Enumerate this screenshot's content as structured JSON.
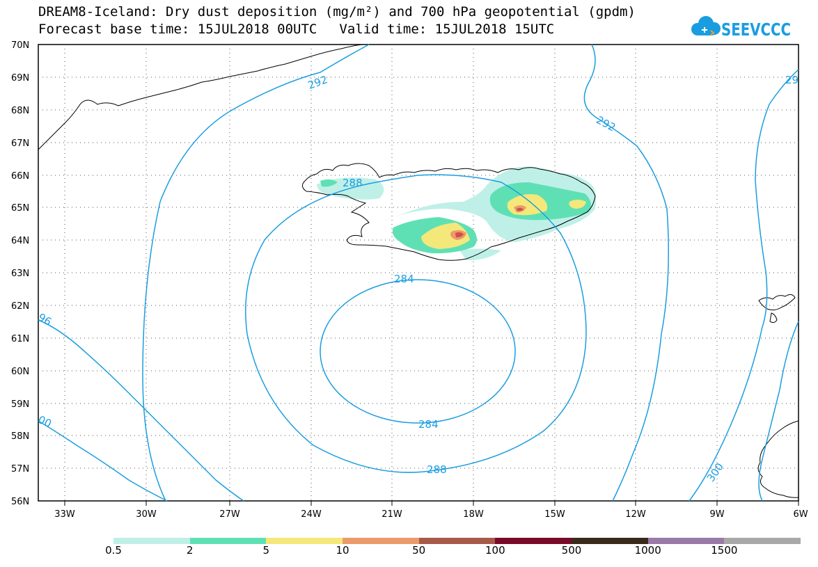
{
  "title": {
    "line1": "DREAM8-Iceland: Dry dust deposition (mg/m²) and 700 hPa geopotential (gpdm)",
    "forecast_base": "Forecast base time: 15JUL2018 00UTC",
    "valid": "Valid time: 15JUL2018 15UTC"
  },
  "logo": {
    "text": "SEEVCCC",
    "icon": "cloud-icon",
    "color": "#1a9de0"
  },
  "map": {
    "lat_labels": [
      "70N",
      "69N",
      "68N",
      "67N",
      "66N",
      "65N",
      "64N",
      "63N",
      "62N",
      "61N",
      "60N",
      "59N",
      "58N",
      "57N",
      "56N"
    ],
    "lon_labels": [
      "33W",
      "30W",
      "27W",
      "24W",
      "21W",
      "18W",
      "15W",
      "12W",
      "9W",
      "6W"
    ],
    "contour_color": "#1a9de0",
    "contour_labels": [
      "292",
      "292",
      "29",
      "288",
      "284",
      "284",
      "288",
      "96",
      "00",
      "300"
    ]
  },
  "legend": {
    "colors": [
      "#bff0e8",
      "#5fe0b4",
      "#f4e87a",
      "#ec9a6a",
      "#a85a4a",
      "#7a0a2a",
      "#3a2a1a",
      "#9a7aa8",
      "#a8a8a8"
    ],
    "labels": [
      "0.5",
      "2",
      "5",
      "10",
      "50",
      "100",
      "500",
      "1000",
      "1500"
    ]
  }
}
